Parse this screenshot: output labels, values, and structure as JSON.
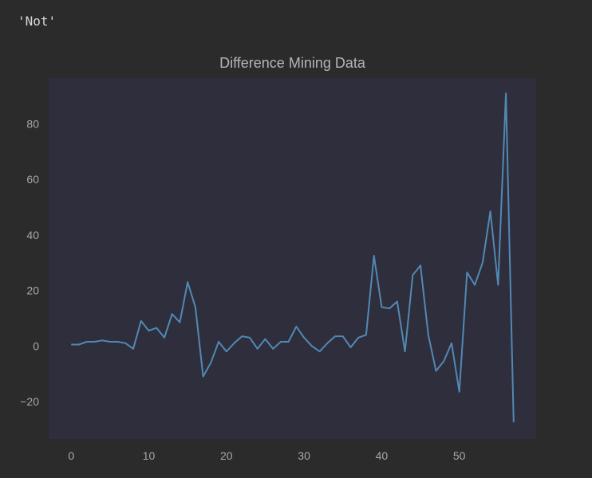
{
  "output": {
    "text": "'Not'"
  },
  "chart_data": {
    "type": "line",
    "title": "Difference Mining Data",
    "xlabel": "",
    "ylabel": "",
    "xlim": [
      -2.9,
      59.9
    ],
    "ylim": [
      -33.5,
      96.5
    ],
    "xticks": [
      0,
      10,
      20,
      30,
      40,
      50
    ],
    "yticks": [
      -20,
      0,
      20,
      40,
      60,
      80
    ],
    "grid": false,
    "colors": {
      "background": "#2b2b2b",
      "plot_area": "#2e2e3d",
      "line": "#5289b3"
    },
    "series": [
      {
        "x": [
          0,
          1,
          2,
          3,
          4,
          5,
          6,
          7,
          8,
          9,
          10,
          11,
          12,
          13,
          14,
          15,
          16,
          17,
          18,
          19,
          20,
          21,
          22,
          23,
          24,
          25,
          26,
          27,
          28,
          29,
          30,
          31,
          32,
          33,
          34,
          35,
          36,
          37,
          38,
          39,
          40,
          41,
          42,
          43,
          44,
          45,
          46,
          47,
          48,
          49,
          50,
          51,
          52,
          53,
          54,
          55,
          56,
          57
        ],
        "y": [
          0.5,
          0.5,
          1.5,
          1.5,
          2.0,
          1.5,
          1.5,
          1.0,
          -1.0,
          9.0,
          5.5,
          6.5,
          3.0,
          11.5,
          8.5,
          23.0,
          14.0,
          -11.0,
          -6.0,
          1.5,
          -2.0,
          1.0,
          3.5,
          3.0,
          -1.0,
          2.5,
          -1.0,
          1.5,
          1.5,
          7.0,
          3.0,
          0.0,
          -2.0,
          1.0,
          3.5,
          3.5,
          -0.5,
          3.0,
          4.0,
          32.5,
          14.0,
          13.5,
          16.0,
          -2.0,
          25.5,
          29.0,
          4.0,
          -9.0,
          -5.5,
          1.0,
          -16.5,
          26.5,
          22.0,
          30.0,
          48.5,
          22.0,
          91.0,
          -27.5
        ]
      }
    ]
  }
}
